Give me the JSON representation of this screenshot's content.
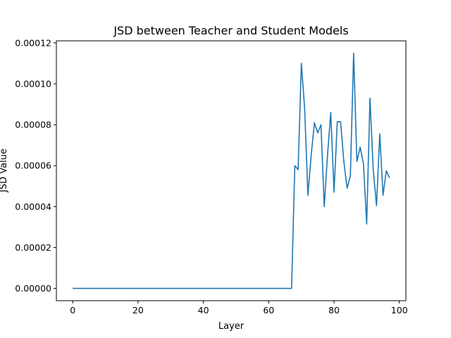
{
  "chart_data": {
    "type": "line",
    "title": "JSD between Teacher and Student Models",
    "xlabel": "Layer",
    "ylabel": "JSD Value",
    "xlim": [
      -5,
      102
    ],
    "ylim": [
      -6e-06,
      0.000121
    ],
    "x_ticks": [
      0,
      20,
      40,
      60,
      80,
      100
    ],
    "y_ticks": [
      0,
      2e-05,
      4e-05,
      6e-05,
      8e-05,
      0.0001,
      0.00012
    ],
    "x_tick_labels": [
      "0",
      "20",
      "40",
      "60",
      "80",
      "100"
    ],
    "y_tick_labels": [
      "0.00000",
      "0.00002",
      "0.00004",
      "0.00006",
      "0.00008",
      "0.00010",
      "0.00012"
    ],
    "grid": false,
    "series": [
      {
        "color": "#1f77b4",
        "x": [
          0,
          1,
          2,
          3,
          4,
          5,
          6,
          7,
          8,
          9,
          10,
          11,
          12,
          13,
          14,
          15,
          16,
          17,
          18,
          19,
          20,
          21,
          22,
          23,
          24,
          25,
          26,
          27,
          28,
          29,
          30,
          31,
          32,
          33,
          34,
          35,
          36,
          37,
          38,
          39,
          40,
          41,
          42,
          43,
          44,
          45,
          46,
          47,
          48,
          49,
          50,
          51,
          52,
          53,
          54,
          55,
          56,
          57,
          58,
          59,
          60,
          61,
          62,
          63,
          64,
          65,
          66,
          67,
          68,
          69,
          70,
          71,
          72,
          73,
          74,
          75,
          76,
          77,
          78,
          79,
          80,
          81,
          82,
          83,
          84,
          85,
          86,
          87,
          88,
          89,
          90,
          91,
          92,
          93,
          94,
          95,
          96,
          97
        ],
        "y": [
          0,
          0,
          0,
          0,
          0,
          0,
          0,
          0,
          0,
          0,
          0,
          0,
          0,
          0,
          0,
          0,
          0,
          0,
          0,
          0,
          0,
          0,
          0,
          0,
          0,
          0,
          0,
          0,
          0,
          0,
          0,
          0,
          0,
          0,
          0,
          0,
          0,
          0,
          0,
          0,
          0,
          0,
          0,
          0,
          0,
          0,
          0,
          0,
          0,
          0,
          0,
          0,
          0,
          0,
          0,
          0,
          0,
          0,
          0,
          0,
          0,
          0,
          0,
          0,
          0,
          0,
          0,
          0,
          6e-05,
          5.8e-05,
          0.00011,
          8.8e-05,
          4.55e-05,
          6.5e-05,
          8.1e-05,
          7.6e-05,
          8e-05,
          4e-05,
          6.5e-05,
          8.6e-05,
          4.7e-05,
          8.15e-05,
          8.15e-05,
          6.2e-05,
          4.9e-05,
          5.5e-05,
          0.000115,
          6.2e-05,
          6.9e-05,
          6.1e-05,
          3.15e-05,
          9.3e-05,
          5.8e-05,
          4.05e-05,
          7.55e-05,
          4.55e-05,
          5.75e-05,
          5.4e-05
        ]
      }
    ]
  }
}
